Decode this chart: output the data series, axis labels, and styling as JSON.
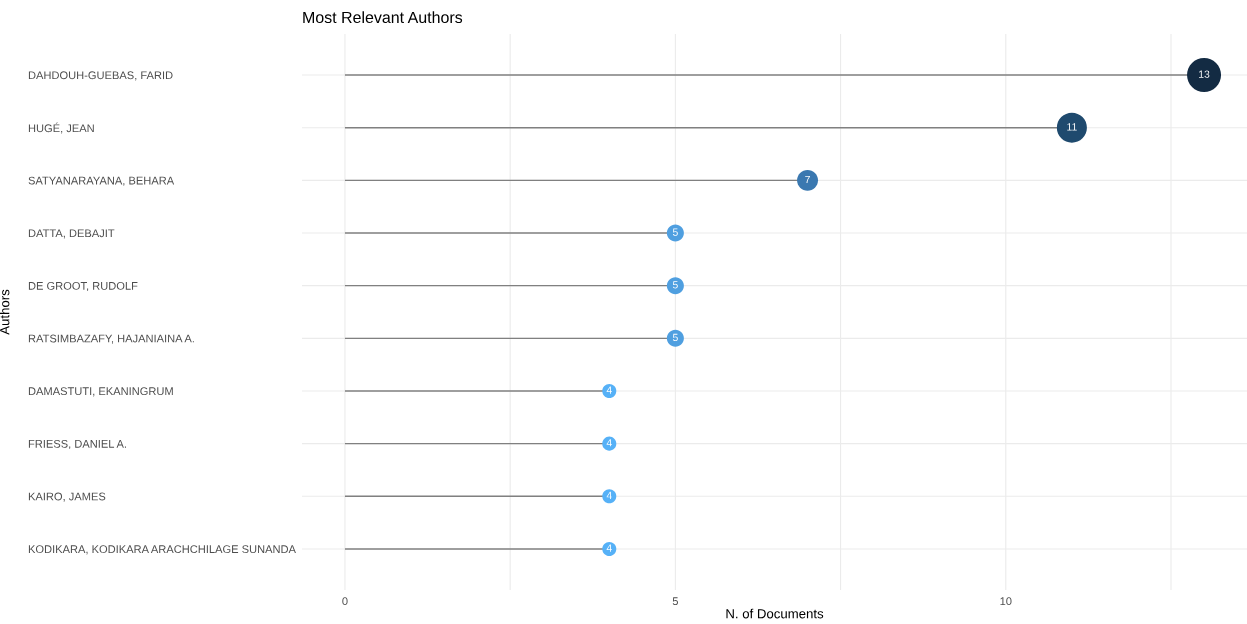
{
  "chart_data": {
    "type": "lollipop",
    "orientation": "horizontal",
    "title": "Most Relevant Authors",
    "xlabel": "N. of Documents",
    "ylabel": "Authors",
    "categories": [
      "DAHDOUH-GUEBAS, FARID",
      "HUGÉ, JEAN",
      "SATYANARAYANA, BEHARA",
      "DATTA, DEBAJIT",
      "DE GROOT, RUDOLF",
      "RATSIMBAZAFY, HAJANIAINA A.",
      "DAMASTUTI, EKANINGRUM",
      "FRIESS, DANIEL A.",
      "KAIRO, JAMES",
      "KODIKARA, KODIKARA ARACHCHILAGE SUNANDA"
    ],
    "series": [
      {
        "values": [
          13,
          11,
          7,
          5,
          5,
          5,
          4,
          4,
          4,
          4
        ],
        "sizes": [
          1,
          0.78,
          0.38,
          0.25,
          0.25,
          0.25,
          0.17,
          0.17,
          0.17,
          0.17
        ],
        "colors": [
          "#132b43",
          "#1f4a6e",
          "#3a78b0",
          "#4f9fe0",
          "#4f9fe0",
          "#4f9fe0",
          "#56b1f7",
          "#56b1f7",
          "#56b1f7",
          "#56b1f7"
        ]
      }
    ],
    "xlim": [
      -0.65,
      13.65
    ],
    "xticks": [
      0,
      {
        "value": 2.5,
        "label": null
      },
      5,
      {
        "value": 7.5,
        "label": null
      },
      10,
      {
        "value": 12.5,
        "label": null
      }
    ],
    "data_labels": true,
    "grid": true,
    "legend": false
  }
}
